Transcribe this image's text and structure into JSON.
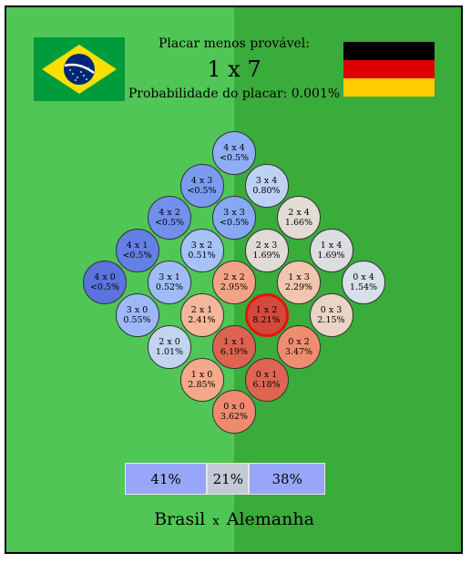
{
  "header": {
    "caption": "Placar menos provável:",
    "score": "1 x 7",
    "probability": "Probabilidade do placar: 0.001%"
  },
  "flags": {
    "left": {
      "country": "Brasil",
      "icon": "brazil-flag-icon",
      "colors": [
        "#009b3a",
        "#fedf00",
        "#002776"
      ]
    },
    "right": {
      "country": "Alemanha",
      "icon": "germany-flag-icon",
      "colors": [
        "#000000",
        "#dd0000",
        "#ffce00"
      ]
    }
  },
  "scores": [
    {
      "home": 0,
      "away": 0,
      "label": "0 x 0",
      "prob": "3.62%",
      "color": "#ef8a6f"
    },
    {
      "home": 1,
      "away": 0,
      "label": "1 x 0",
      "prob": "2.85%",
      "color": "#f4a98a"
    },
    {
      "home": 2,
      "away": 0,
      "label": "2 x 0",
      "prob": "1.01%",
      "color": "#c3d4f0"
    },
    {
      "home": 3,
      "away": 0,
      "label": "3 x 0",
      "prob": "0.55%",
      "color": "#9db9f8"
    },
    {
      "home": 4,
      "away": 0,
      "label": "4 x 0",
      "prob": "<0.5%",
      "color": "#5b73de"
    },
    {
      "home": 0,
      "away": 1,
      "label": "0 x 1",
      "prob": "6.18%",
      "color": "#de6551"
    },
    {
      "home": 1,
      "away": 1,
      "label": "1 x 1",
      "prob": "6.19%",
      "color": "#dd6350"
    },
    {
      "home": 2,
      "away": 1,
      "label": "2 x 1",
      "prob": "2.41%",
      "color": "#f4b79c"
    },
    {
      "home": 3,
      "away": 1,
      "label": "3 x 1",
      "prob": "0.52%",
      "color": "#9ebdf7"
    },
    {
      "home": 4,
      "away": 1,
      "label": "4 x 1",
      "prob": "<0.5%",
      "color": "#6480e4"
    },
    {
      "home": 0,
      "away": 2,
      "label": "0 x 2",
      "prob": "3.47%",
      "color": "#ef8d70"
    },
    {
      "home": 1,
      "away": 2,
      "label": "1 x 2",
      "prob": "8.21%",
      "color": "#d4493e",
      "highlight": true
    },
    {
      "home": 2,
      "away": 2,
      "label": "2 x 2",
      "prob": "2.95%",
      "color": "#f3a385"
    },
    {
      "home": 3,
      "away": 2,
      "label": "3 x 2",
      "prob": "0.51%",
      "color": "#a6c3f8"
    },
    {
      "home": 4,
      "away": 2,
      "label": "4 x 2",
      "prob": "<0.5%",
      "color": "#7190ec"
    },
    {
      "home": 0,
      "away": 3,
      "label": "0 x 3",
      "prob": "2.15%",
      "color": "#ead4c6"
    },
    {
      "home": 1,
      "away": 3,
      "label": "1 x 3",
      "prob": "2.29%",
      "color": "#f3c5ae"
    },
    {
      "home": 2,
      "away": 3,
      "label": "2 x 3",
      "prob": "1.69%",
      "color": "#e1dbd6"
    },
    {
      "home": 3,
      "away": 3,
      "label": "3 x 3",
      "prob": "<0.5%",
      "color": "#86a8f5"
    },
    {
      "home": 4,
      "away": 3,
      "label": "4 x 3",
      "prob": "<0.5%",
      "color": "#7b9bf0"
    },
    {
      "home": 0,
      "away": 4,
      "label": "0 x 4",
      "prob": "1.54%",
      "color": "#d6dfea"
    },
    {
      "home": 1,
      "away": 4,
      "label": "1 x 4",
      "prob": "1.69%",
      "color": "#dcdde0"
    },
    {
      "home": 2,
      "away": 4,
      "label": "2 x 4",
      "prob": "1.66%",
      "color": "#e2dcd4"
    },
    {
      "home": 3,
      "away": 4,
      "label": "3 x 4",
      "prob": "0.80%",
      "color": "#bdd1f4"
    },
    {
      "home": 4,
      "away": 4,
      "label": "4 x 4",
      "prob": "<0.5%",
      "color": "#8eaef5"
    }
  ],
  "summary": [
    {
      "label": "41%",
      "value": 41,
      "color": "#98a6f9"
    },
    {
      "label": "21%",
      "value": 21,
      "color": "#c3cad6"
    },
    {
      "label": "38%",
      "value": 38,
      "color": "#98a6f9"
    }
  ],
  "teams": {
    "home": "Brasil",
    "sep": "x",
    "away": "Alemanha"
  }
}
